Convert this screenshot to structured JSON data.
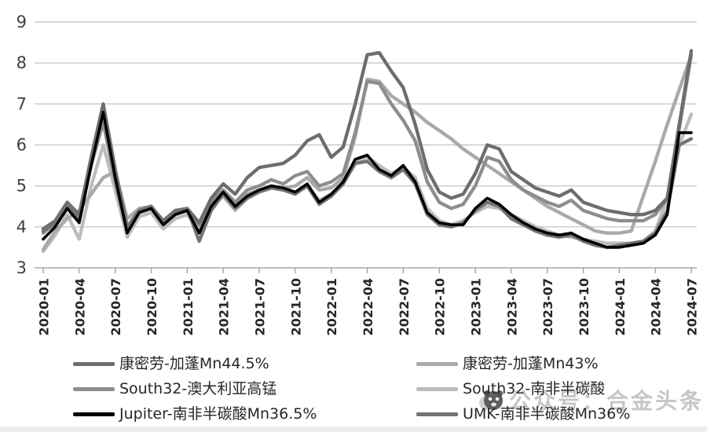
{
  "page": {
    "background": "#ffffff"
  },
  "watermark": {
    "icon": "panda-face",
    "text": "公众号：合金头条",
    "color": "#c6c6c6"
  },
  "chart_data": {
    "type": "line",
    "title": "",
    "xlabel": "",
    "ylabel": "",
    "ylim": [
      3,
      9
    ],
    "yticks": [
      3,
      4,
      5,
      6,
      7,
      8,
      9
    ],
    "grid": true,
    "legend_position": "bottom",
    "tick_every": 3,
    "axis_color": "#a6a6a6",
    "grid_color": "#c9c9c9",
    "tick_label_color": "#262626",
    "ytick_label_color": "#3f3f3f",
    "x": [
      "2020-01",
      "2020-02",
      "2020-03",
      "2020-04",
      "2020-05",
      "2020-06",
      "2020-07",
      "2020-08",
      "2020-09",
      "2020-10",
      "2020-11",
      "2020-12",
      "2021-01",
      "2021-02",
      "2021-03",
      "2021-04",
      "2021-05",
      "2021-06",
      "2021-07",
      "2021-08",
      "2021-09",
      "2021-10",
      "2021-11",
      "2021-12",
      "2022-01",
      "2022-02",
      "2022-03",
      "2022-04",
      "2022-05",
      "2022-06",
      "2022-07",
      "2022-08",
      "2022-09",
      "2022-10",
      "2022-11",
      "2022-12",
      "2023-01",
      "2023-02",
      "2023-03",
      "2023-04",
      "2023-05",
      "2023-06",
      "2023-07",
      "2023-08",
      "2023-09",
      "2023-10",
      "2023-11",
      "2023-12",
      "2024-01",
      "2024-02",
      "2024-03",
      "2024-04",
      "2024-05",
      "2024-06",
      "2024-07"
    ],
    "draw_order": [
      3,
      1,
      2,
      0,
      5,
      4
    ],
    "series": [
      {
        "name": "康密劳-加蓬Mn44.5%",
        "color": "#6d6d6d",
        "width": 4.3,
        "values": [
          3.95,
          4.15,
          4.6,
          4.3,
          5.7,
          7.0,
          5.4,
          4.0,
          4.4,
          4.5,
          4.15,
          4.4,
          4.45,
          4.1,
          4.7,
          5.05,
          4.8,
          5.2,
          5.45,
          5.5,
          5.55,
          5.75,
          6.1,
          6.25,
          5.7,
          5.95,
          7.0,
          8.2,
          8.25,
          7.8,
          7.4,
          6.5,
          5.4,
          4.85,
          4.7,
          4.8,
          5.3,
          6.0,
          5.9,
          5.35,
          5.15,
          4.95,
          4.85,
          4.75,
          4.9,
          4.6,
          4.5,
          4.4,
          4.35,
          4.3,
          4.3,
          4.4,
          4.7,
          6.5,
          8.3
        ]
      },
      {
        "name": "康密劳-加蓬Mn43%",
        "color": "#a9a9a9",
        "width": 4.3,
        "values": [
          3.45,
          3.9,
          4.2,
          4.4,
          4.8,
          5.2,
          5.35,
          4.2,
          4.45,
          4.5,
          4.1,
          4.35,
          4.4,
          4.05,
          4.55,
          4.85,
          4.55,
          4.8,
          4.9,
          5.0,
          4.95,
          5.0,
          5.2,
          4.9,
          4.95,
          5.2,
          6.2,
          7.6,
          7.55,
          7.2,
          7.0,
          6.8,
          6.55,
          6.35,
          6.15,
          5.9,
          5.7,
          5.5,
          5.3,
          5.1,
          4.9,
          4.7,
          4.5,
          4.35,
          4.2,
          4.05,
          3.9,
          3.85,
          3.85,
          3.9,
          4.75,
          5.6,
          6.5,
          7.35,
          8.2
        ]
      },
      {
        "name": "South32-澳大利亚高锰",
        "color": "#8d8d8d",
        "width": 4.3,
        "values": [
          3.85,
          4.1,
          4.5,
          4.25,
          5.5,
          6.55,
          5.1,
          3.9,
          4.35,
          4.45,
          4.1,
          4.3,
          4.4,
          4.05,
          4.6,
          4.9,
          4.6,
          4.9,
          5.0,
          5.15,
          5.05,
          5.25,
          5.35,
          5.0,
          5.1,
          5.3,
          6.3,
          7.55,
          7.5,
          7.0,
          6.6,
          6.1,
          5.1,
          4.6,
          4.45,
          4.55,
          5.0,
          5.7,
          5.6,
          5.15,
          4.9,
          4.75,
          4.6,
          4.5,
          4.65,
          4.4,
          4.3,
          4.2,
          4.15,
          4.15,
          4.15,
          4.3,
          4.7,
          6.4,
          8.2
        ]
      },
      {
        "name": "South32-南非半碳酸",
        "color": "#bcbcbc",
        "width": 4.3,
        "values": [
          3.4,
          3.8,
          4.3,
          3.7,
          5.0,
          6.0,
          4.9,
          3.75,
          4.25,
          4.35,
          3.95,
          4.2,
          4.3,
          3.95,
          4.5,
          4.75,
          4.4,
          4.7,
          4.85,
          4.95,
          4.9,
          4.85,
          5.0,
          4.65,
          4.8,
          5.05,
          5.6,
          5.7,
          5.5,
          5.3,
          5.45,
          5.2,
          4.45,
          4.15,
          4.05,
          4.15,
          4.35,
          4.5,
          4.45,
          4.3,
          4.15,
          4.0,
          3.9,
          3.8,
          3.75,
          3.7,
          3.65,
          3.6,
          3.6,
          3.6,
          3.65,
          3.9,
          4.7,
          6.0,
          6.75
        ]
      },
      {
        "name": "Jupiter-南非半碳酸Mn36.5%",
        "color": "#000000",
        "width": 3.6,
        "values": [
          3.7,
          4.0,
          4.45,
          4.1,
          5.5,
          6.8,
          5.2,
          3.85,
          4.35,
          4.45,
          4.05,
          4.3,
          4.4,
          3.85,
          4.5,
          4.85,
          4.5,
          4.75,
          4.9,
          5.0,
          4.95,
          4.85,
          5.05,
          4.6,
          4.8,
          5.1,
          5.65,
          5.75,
          5.4,
          5.25,
          5.5,
          5.1,
          4.35,
          4.1,
          4.05,
          4.05,
          4.45,
          4.7,
          4.55,
          4.3,
          4.1,
          3.95,
          3.85,
          3.8,
          3.85,
          3.7,
          3.6,
          3.5,
          3.5,
          3.55,
          3.6,
          3.8,
          4.3,
          6.3,
          6.3
        ]
      },
      {
        "name": "UMK-南非半碳酸Mn36%",
        "color": "#737373",
        "width": 4.3,
        "values": [
          3.9,
          4.1,
          4.55,
          4.2,
          5.6,
          6.85,
          5.3,
          3.95,
          4.4,
          4.5,
          4.1,
          4.35,
          4.45,
          3.65,
          4.4,
          4.8,
          4.45,
          4.7,
          4.85,
          4.95,
          4.9,
          4.8,
          5.0,
          4.55,
          4.75,
          5.05,
          5.55,
          5.6,
          5.35,
          5.2,
          5.4,
          5.05,
          4.3,
          4.05,
          4.0,
          4.1,
          4.4,
          4.6,
          4.5,
          4.2,
          4.05,
          3.9,
          3.8,
          3.75,
          3.8,
          3.65,
          3.55,
          3.5,
          3.55,
          3.6,
          3.65,
          3.85,
          4.4,
          6.0,
          6.15
        ]
      }
    ]
  }
}
